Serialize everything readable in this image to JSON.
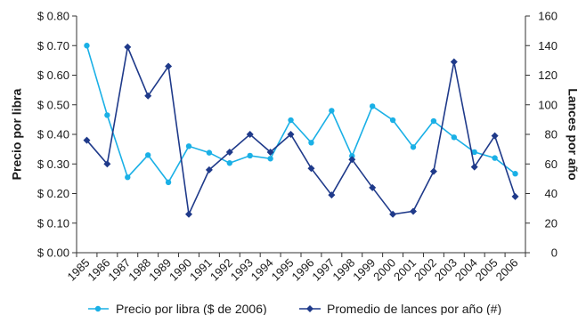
{
  "chart_data": {
    "type": "line",
    "categories": [
      "1985",
      "1986",
      "1987",
      "1988",
      "1989",
      "1990",
      "1991",
      "1992",
      "1993",
      "1994",
      "1995",
      "1996",
      "1997",
      "1998",
      "1999",
      "2000",
      "2001",
      "2002",
      "2003",
      "2004",
      "2005",
      "2006"
    ],
    "y_left": {
      "label": "Precio por libra",
      "ylim": [
        0,
        0.8
      ],
      "ticks": [
        0,
        0.1,
        0.2,
        0.3,
        0.4,
        0.5,
        0.6,
        0.7,
        0.8
      ],
      "tick_labels": [
        "$ 0.00",
        "$ 0.10",
        "$ 0.20",
        "$ 0.30",
        "$ 0.40",
        "$ 0.50",
        "$ 0.60",
        "$ 0.70",
        "$ 0.80"
      ]
    },
    "y_right": {
      "label": "Lances por año",
      "ylim": [
        0,
        160
      ],
      "ticks": [
        0,
        20,
        40,
        60,
        80,
        100,
        120,
        140,
        160
      ],
      "tick_labels": [
        "0",
        "20",
        "40",
        "60",
        "80",
        "100",
        "120",
        "140",
        "160"
      ]
    },
    "series": [
      {
        "name": "Precio por libra ($ de 2006)",
        "axis": "left",
        "color": "#1ab0e6",
        "marker": "circle",
        "values": [
          0.7,
          0.465,
          0.255,
          0.33,
          0.238,
          0.36,
          0.338,
          0.303,
          0.328,
          0.318,
          0.448,
          0.372,
          0.48,
          0.327,
          0.495,
          0.448,
          0.357,
          0.445,
          0.39,
          0.34,
          0.32,
          0.267
        ]
      },
      {
        "name": "Promedio de lances por año (#)",
        "axis": "right",
        "color": "#1f3a8a",
        "marker": "diamond",
        "values": [
          76,
          60,
          139,
          106,
          126,
          26,
          56,
          68,
          80,
          68,
          80,
          57,
          39,
          63,
          44,
          26,
          28,
          55,
          129,
          58,
          79,
          38
        ]
      }
    ],
    "grid": false,
    "legend_position": "bottom"
  }
}
